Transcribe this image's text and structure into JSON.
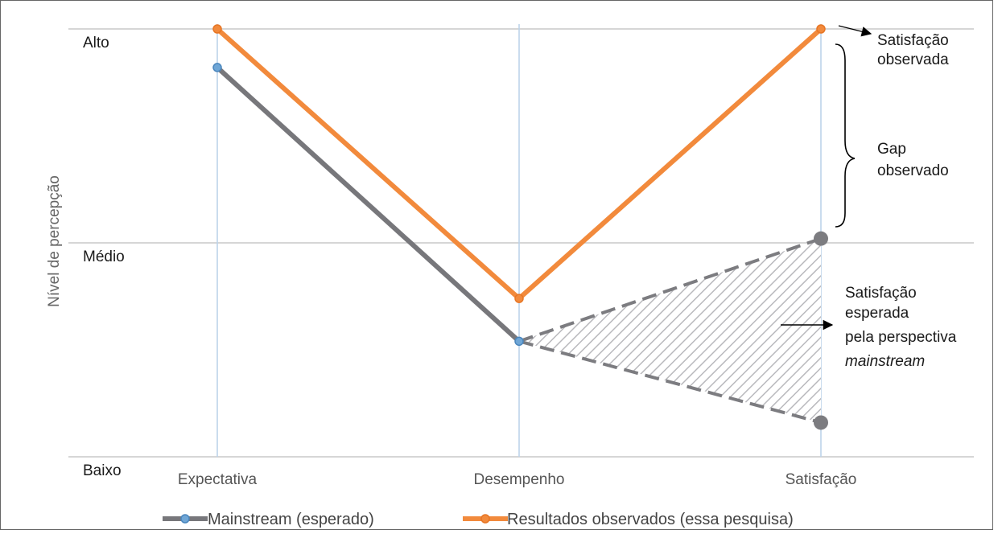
{
  "chart_data": {
    "type": "line",
    "title": "",
    "xlabel": "",
    "ylabel": "Nível de percepção",
    "categories": [
      "Expectativa",
      "Desempenho",
      "Satisfação"
    ],
    "y_levels": [
      {
        "label": "Alto",
        "value": 1.0
      },
      {
        "label": "Médio",
        "value": 0.5
      },
      {
        "label": "Baixo",
        "value": 0.0
      }
    ],
    "ylim": [
      0,
      1
    ],
    "series": [
      {
        "name": "Mainstream (esperado)",
        "color": "#77777b",
        "values": [
          0.91,
          0.27,
          null
        ]
      },
      {
        "name": "Resultados observados (essa pesquisa)",
        "color": "#f28a3c",
        "values": [
          1.0,
          0.37,
          1.0
        ]
      }
    ],
    "expected_range": {
      "color": "#7c7c80",
      "from": 0.27,
      "to_high": 0.51,
      "to_low": 0.08
    },
    "annotations": {
      "satisfacao_observada": [
        "Satisfação",
        "observada"
      ],
      "gap_observado": [
        "Gap",
        "observado"
      ],
      "satisfacao_esperada": [
        "Satisfação",
        "esperada",
        "pela perspectiva"
      ],
      "satisfacao_esperada_italic": "mainstream"
    },
    "legend_position": "bottom",
    "grid": true
  }
}
